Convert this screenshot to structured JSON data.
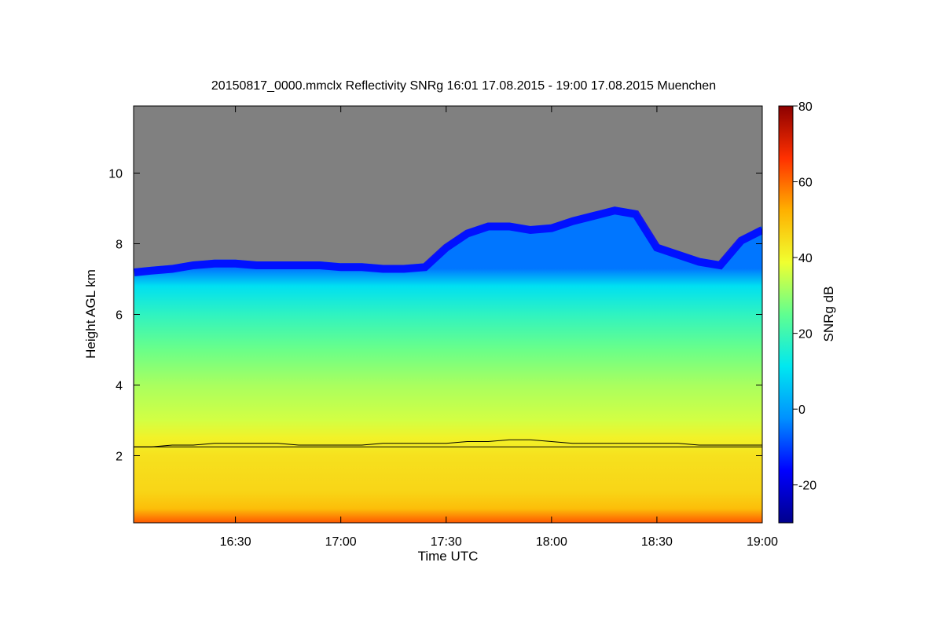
{
  "chart_data": {
    "type": "heatmap",
    "title": "20150817_0000.mmclx Reflectivity SNRg   16:01 17.08.2015 - 19:00 17.08.2015 Muenchen",
    "xlabel": "Time UTC",
    "ylabel": "Height AGL km",
    "x_range_hours": [
      16.0167,
      19.0
    ],
    "y_range_km": [
      0.1,
      11.9
    ],
    "x_ticks": [
      "16:30",
      "17:00",
      "17:30",
      "18:00",
      "18:30",
      "19:00"
    ],
    "x_tick_hours": [
      16.5,
      17.0,
      17.5,
      18.0,
      18.5,
      19.0
    ],
    "y_ticks": [
      "2",
      "4",
      "6",
      "8",
      "10"
    ],
    "y_tick_values": [
      2,
      4,
      6,
      8,
      10
    ],
    "no_signal_color": "#808080",
    "colorbar": {
      "label": "SNRg dB",
      "range": [
        -30,
        80
      ],
      "ticks": [
        "-20",
        "0",
        "20",
        "40",
        "60",
        "80"
      ],
      "tick_values": [
        -20,
        0,
        20,
        40,
        60,
        80
      ],
      "colors": [
        "#00008c",
        "#0000ff",
        "#0090ff",
        "#00e8f0",
        "#60ff90",
        "#f0ff30",
        "#ffb000",
        "#ff3000",
        "#8c0000"
      ]
    },
    "cloud_top_km": {
      "hours": [
        16.02,
        16.1,
        16.2,
        16.3,
        16.4,
        16.5,
        16.6,
        16.7,
        16.8,
        16.9,
        17.0,
        17.1,
        17.2,
        17.3,
        17.4,
        17.5,
        17.6,
        17.7,
        17.8,
        17.9,
        18.0,
        18.1,
        18.2,
        18.3,
        18.4,
        18.5,
        18.6,
        18.7,
        18.8,
        18.9,
        19.0
      ],
      "heights": [
        7.3,
        7.35,
        7.4,
        7.5,
        7.55,
        7.55,
        7.5,
        7.5,
        7.5,
        7.5,
        7.45,
        7.45,
        7.4,
        7.4,
        7.45,
        8.0,
        8.4,
        8.6,
        8.6,
        8.5,
        8.55,
        8.75,
        8.9,
        9.05,
        8.95,
        8.0,
        7.8,
        7.6,
        7.5,
        8.2,
        8.5
      ]
    },
    "melting_layer_km": {
      "hours": [
        16.02,
        16.1,
        16.2,
        16.3,
        16.4,
        16.5,
        16.6,
        16.7,
        16.8,
        16.9,
        17.0,
        17.1,
        17.2,
        17.3,
        17.4,
        17.5,
        17.6,
        17.7,
        17.8,
        17.9,
        18.0,
        18.1,
        18.2,
        18.3,
        18.4,
        18.5,
        18.6,
        18.7,
        18.8,
        18.9,
        19.0
      ],
      "heights": [
        2.25,
        2.25,
        2.3,
        2.3,
        2.35,
        2.35,
        2.35,
        2.35,
        2.3,
        2.3,
        2.3,
        2.3,
        2.35,
        2.35,
        2.35,
        2.35,
        2.4,
        2.4,
        2.45,
        2.45,
        2.4,
        2.35,
        2.35,
        2.35,
        2.35,
        2.35,
        2.35,
        2.3,
        2.3,
        2.3,
        2.3
      ]
    },
    "snr_profile_db": {
      "heights_km": [
        0.1,
        0.5,
        1.0,
        2.0,
        2.5,
        3.0,
        4.0,
        5.0,
        6.0,
        6.8,
        7.3
      ],
      "values": [
        62,
        50,
        46,
        44,
        41,
        36,
        32,
        26,
        18,
        10,
        -5
      ]
    }
  }
}
